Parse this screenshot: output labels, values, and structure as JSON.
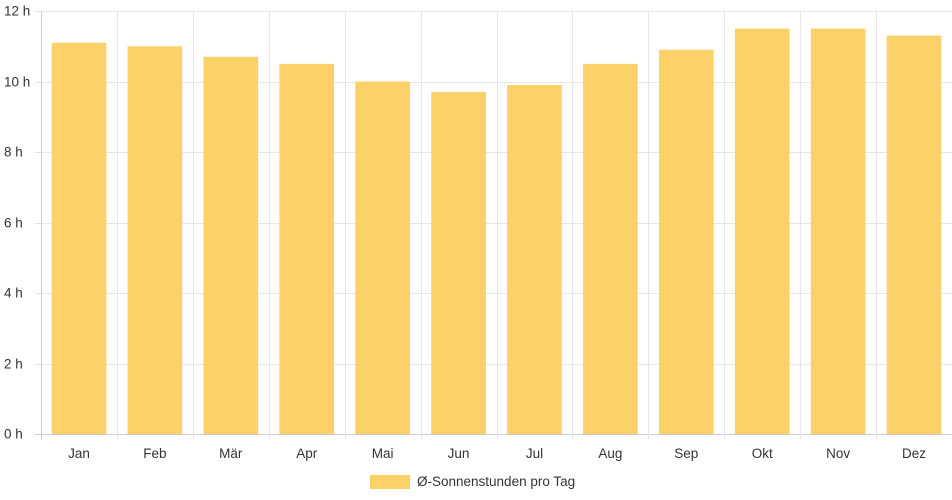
{
  "chart_data": {
    "type": "bar",
    "categories": [
      "Jan",
      "Feb",
      "Mär",
      "Apr",
      "Mai",
      "Jun",
      "Jul",
      "Aug",
      "Sep",
      "Okt",
      "Nov",
      "Dez"
    ],
    "series": [
      {
        "name": "Ø-Sonnenstunden pro Tag",
        "values": [
          11.1,
          11.0,
          10.7,
          10.5,
          10.0,
          9.7,
          9.9,
          10.5,
          10.9,
          11.5,
          11.5,
          11.3
        ],
        "color": "#fdd169"
      }
    ],
    "y_ticks": [
      "0 h",
      "2 h",
      "4 h",
      "6 h",
      "8 h",
      "10 h",
      "12 h"
    ],
    "ylim": [
      0,
      12
    ],
    "grid": true,
    "legend_position": "bottom-center",
    "grid_color": "#e6e6e6",
    "axis_color": "#cccccc"
  }
}
